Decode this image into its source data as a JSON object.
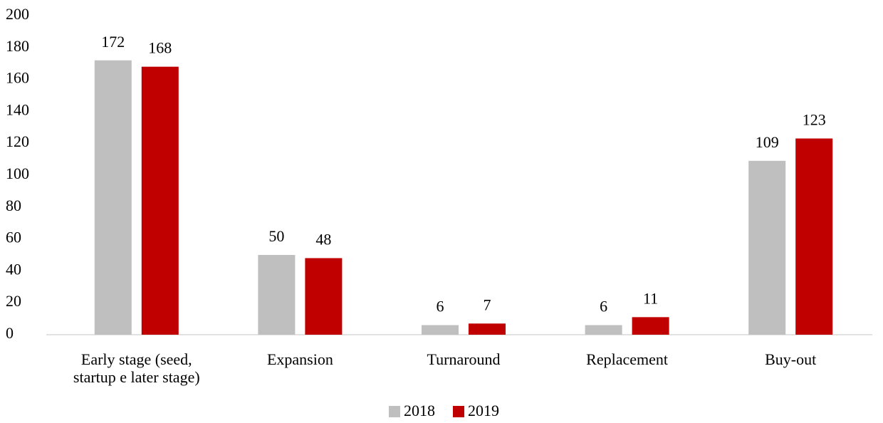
{
  "chart_data": {
    "type": "bar",
    "categories": [
      "Early stage (seed, startup e later stage)",
      "Expansion",
      "Turnaround",
      "Replacement",
      "Buy-out"
    ],
    "series": [
      {
        "name": "2018",
        "color": "#bfbfbf",
        "values": [
          172,
          50,
          6,
          6,
          109
        ]
      },
      {
        "name": "2019",
        "color": "#c00000",
        "values": [
          168,
          48,
          7,
          11,
          123
        ]
      }
    ],
    "ylim": [
      0,
      200
    ],
    "yticks": [
      0,
      20,
      40,
      60,
      80,
      100,
      120,
      140,
      160,
      180,
      200
    ],
    "grid": false,
    "legend": "bottom"
  }
}
